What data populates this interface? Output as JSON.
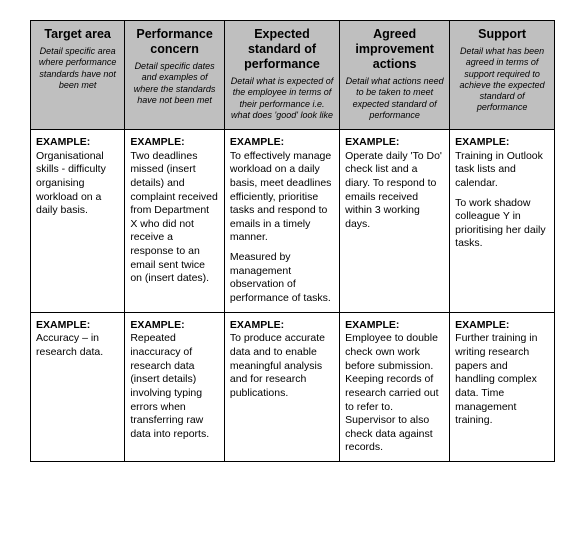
{
  "columns": [
    {
      "title": "Target area",
      "sub": "Detail specific area where performance standards have not been met"
    },
    {
      "title": "Performance concern",
      "sub": "Detail specific dates and examples of where the standards have not been met"
    },
    {
      "title": "Expected standard of performance",
      "sub": "Detail what is expected of the employee in terms of their performance i.e. what does 'good' look like"
    },
    {
      "title": "Agreed improvement actions",
      "sub": "Detail what actions need to be taken to meet expected standard of performance"
    },
    {
      "title": "Support",
      "sub": "Detail what has been agreed in terms of support required to achieve the expected standard of performance"
    }
  ],
  "example_label": "EXAMPLE:",
  "rows": [
    {
      "c0": [
        [
          "Organisational skills - difficulty organising workload on a daily basis."
        ]
      ],
      "c1": [
        [
          "Two deadlines missed (insert details) and complaint received from Department X who did not receive a response to an email sent twice on (insert dates)."
        ]
      ],
      "c2": [
        [
          "To effectively manage workload on a daily basis, meet deadlines efficiently, prioritise tasks and respond to emails in a timely manner."
        ],
        [
          "Measured by management observation of performance of tasks."
        ]
      ],
      "c3": [
        [
          "Operate daily 'To Do' check list and a diary. To respond to emails received within 3 working days."
        ]
      ],
      "c4": [
        [
          "Training in Outlook task lists and calendar."
        ],
        [
          "To work shadow colleague Y in prioritising her daily tasks."
        ]
      ]
    },
    {
      "c0": [
        [
          "Accuracy – in research data."
        ]
      ],
      "c1": [
        [
          "Repeated inaccuracy of research data (insert details) involving typing errors when transferring raw data into reports."
        ]
      ],
      "c2": [
        [
          "To produce accurate data and to enable meaningful analysis and for research publications."
        ]
      ],
      "c3": [
        [
          "Employee to double check own work before submission. Keeping records of research carried out to refer to. Supervisor to also check data against records."
        ]
      ],
      "c4": [
        [
          "Further training in writing research papers and handling complex data. Time management training."
        ]
      ]
    }
  ],
  "col_widths": [
    "18%",
    "19%",
    "22%",
    "21%",
    "20%"
  ]
}
